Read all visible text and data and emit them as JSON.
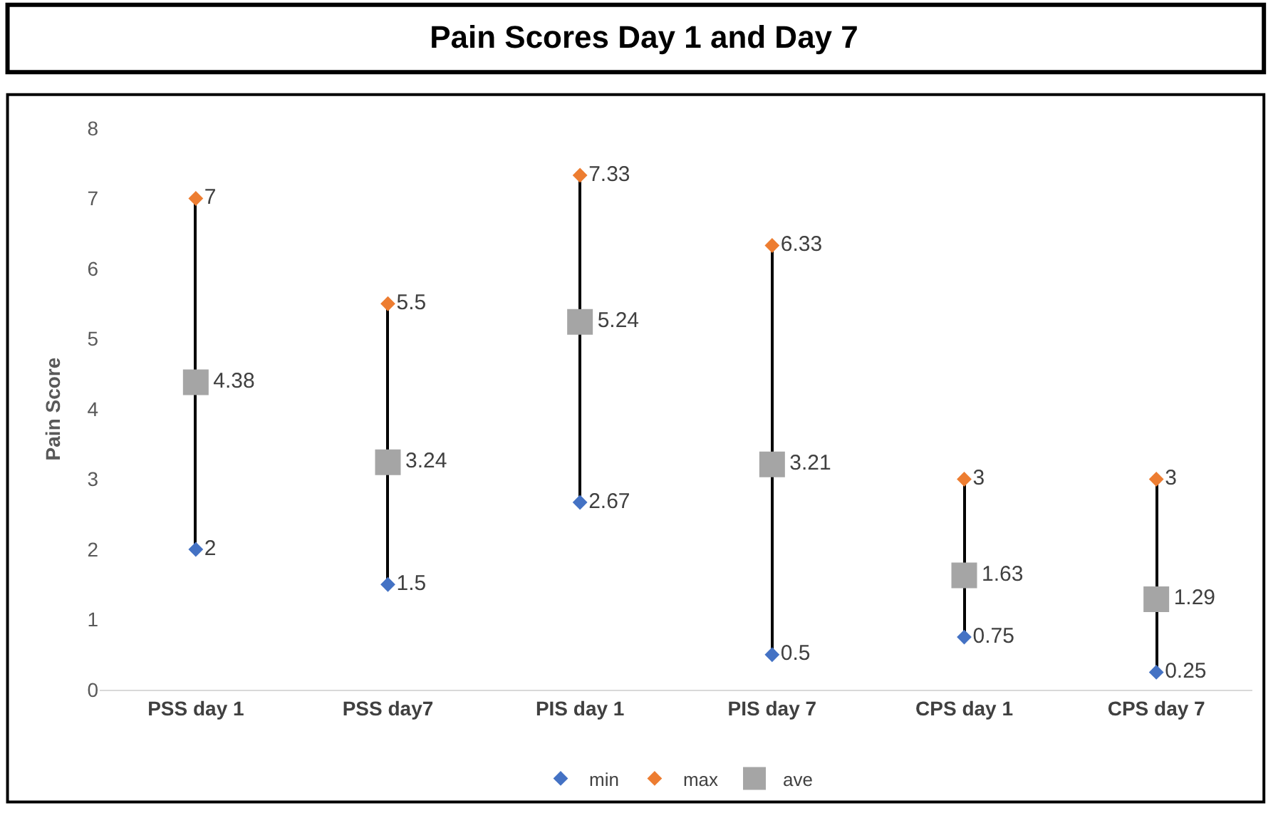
{
  "chart_data": {
    "type": "scatter",
    "title": "Pain Scores Day 1 and Day 7",
    "ylabel": "Pain Score",
    "categories": [
      "PSS day 1",
      "PSS day7",
      "PIS day 1",
      "PIS day 7",
      "CPS day 1",
      "CPS day 7"
    ],
    "series": [
      {
        "type": "bar",
        "color": "#000000",
        "base": [
          2,
          1.5,
          2.67,
          0.5,
          0.75,
          0.25
        ],
        "values": [
          5,
          4,
          4.66,
          5.83,
          2.25,
          2.75
        ],
        "value_labels": [
          null,
          null,
          null,
          null,
          null,
          null
        ]
      },
      {
        "name": "min",
        "color": "#4472c4",
        "marker": "diamond",
        "values": [
          2,
          1.5,
          2.67,
          0.5,
          0.75,
          0.25
        ],
        "value_labels": [
          "2",
          "1.5",
          "2.67",
          "0.5",
          "0.75",
          "0.25"
        ]
      },
      {
        "name": "max",
        "color": "#ed7d31",
        "marker": "diamond",
        "values": [
          7,
          5.5,
          7.33,
          6.33,
          3,
          3
        ],
        "value_labels": [
          "7",
          "5.5",
          "7.33",
          "6.33",
          "3",
          "3"
        ]
      },
      {
        "name": "ave",
        "color": "#a5a5a5",
        "marker": "square",
        "values": [
          4.38,
          3.24,
          5.24,
          3.21,
          1.63,
          1.29
        ],
        "value_labels": [
          "4.38",
          "3.24",
          "5.24",
          "3.21",
          "1.63",
          "1.29"
        ]
      }
    ],
    "ylim": [
      0,
      8
    ],
    "yticks": [
      0,
      1,
      2,
      3,
      4,
      5,
      6,
      7,
      8
    ],
    "grid": false,
    "legend": "bottom"
  }
}
